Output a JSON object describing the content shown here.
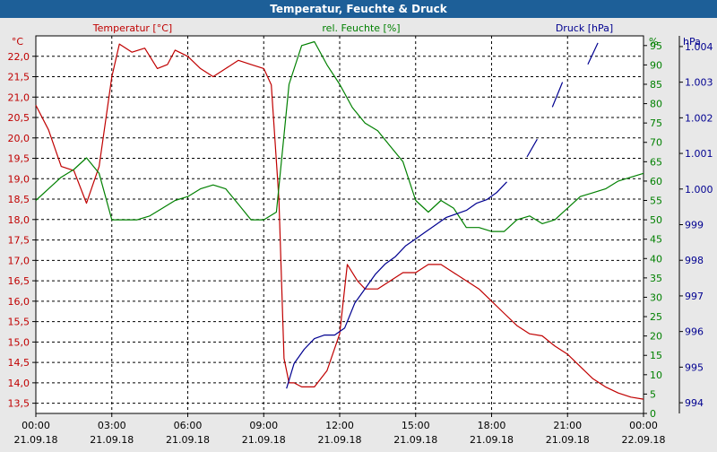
{
  "window": {
    "title": "Temperatur, Feuchte & Druck"
  },
  "chart_data": {
    "type": "line",
    "title": "",
    "xlabel": "",
    "x_ticks": [
      {
        "time": "00:00",
        "date": "21.09.18"
      },
      {
        "time": "03:00",
        "date": "21.09.18"
      },
      {
        "time": "06:00",
        "date": "21.09.18"
      },
      {
        "time": "09:00",
        "date": "21.09.18"
      },
      {
        "time": "12:00",
        "date": "21.09.18"
      },
      {
        "time": "15:00",
        "date": "21.09.18"
      },
      {
        "time": "18:00",
        "date": "21.09.18"
      },
      {
        "time": "21:00",
        "date": "21.09.18"
      },
      {
        "time": "00:00",
        "date": "22.09.18"
      }
    ],
    "xlim_hours": [
      0,
      24
    ],
    "grid": true,
    "axes": {
      "temperature": {
        "label": "Temperatur [°C]",
        "unit": "°C",
        "color": "#c00000",
        "side": "left",
        "ylim": [
          13.25,
          22.5
        ],
        "ticks": [
          "13,5",
          "14,0",
          "14,5",
          "15,0",
          "15,5",
          "16,0",
          "16,5",
          "17,0",
          "17,5",
          "18,0",
          "18,5",
          "19,0",
          "19,5",
          "20,0",
          "20,5",
          "21,0",
          "21,5",
          "22,0"
        ]
      },
      "humidity": {
        "label": "rel. Feuchte [%]",
        "unit": "%",
        "color": "#008000",
        "side": "right",
        "ylim": [
          0,
          97.5
        ],
        "ticks": [
          "0",
          "5",
          "10",
          "15",
          "20",
          "25",
          "30",
          "35",
          "40",
          "45",
          "50",
          "55",
          "60",
          "65",
          "70",
          "75",
          "80",
          "85",
          "90",
          "95"
        ]
      },
      "pressure": {
        "label": "Druck [hPa]",
        "unit": "hPa",
        "color": "#000090",
        "side": "right",
        "ylim": [
          993.7,
          1004.3
        ],
        "ticks": [
          "994",
          "995",
          "996",
          "997",
          "998",
          "999",
          "1.000",
          "1.001",
          "1.002",
          "1.003",
          "1.004"
        ]
      }
    },
    "series": [
      {
        "name": "Temperatur [°C]",
        "axis": "temperature",
        "color": "#c00000",
        "x": [
          0,
          0.5,
          1,
          1.5,
          2,
          2.5,
          3,
          3.3,
          3.8,
          4.3,
          4.8,
          5.2,
          5.5,
          6,
          6.5,
          7,
          7.5,
          8,
          8.5,
          9,
          9.3,
          9.6,
          9.8,
          10,
          10.2,
          10.5,
          11,
          11.5,
          12,
          12.3,
          12.7,
          13,
          13.5,
          14,
          14.5,
          15,
          15.5,
          16,
          16.5,
          17,
          17.5,
          18,
          18.5,
          19,
          19.5,
          20,
          20.5,
          21,
          21.5,
          22,
          22.5,
          23,
          23.5,
          24
        ],
        "y": [
          20.8,
          20.2,
          19.3,
          19.2,
          18.4,
          19.3,
          21.5,
          22.3,
          22.1,
          22.2,
          21.7,
          21.8,
          22.15,
          22.0,
          21.7,
          21.5,
          21.7,
          21.9,
          21.8,
          21.7,
          21.3,
          18.5,
          14.6,
          14.0,
          14.0,
          13.9,
          13.9,
          14.3,
          15.2,
          16.9,
          16.5,
          16.3,
          16.3,
          16.5,
          16.7,
          16.7,
          16.9,
          16.9,
          16.7,
          16.5,
          16.3,
          16.0,
          15.7,
          15.4,
          15.2,
          15.15,
          14.9,
          14.7,
          14.4,
          14.1,
          13.9,
          13.75,
          13.65,
          13.6
        ]
      },
      {
        "name": "rel. Feuchte [%]",
        "axis": "humidity",
        "color": "#008000",
        "x": [
          0,
          0.5,
          1,
          1.5,
          2,
          2.5,
          3,
          3.5,
          4,
          4.5,
          5,
          5.5,
          6,
          6.5,
          7,
          7.5,
          8,
          8.5,
          9,
          9.5,
          10,
          10.5,
          11,
          11.5,
          12,
          12.5,
          13,
          13.5,
          14,
          14.5,
          15,
          15.5,
          16,
          16.5,
          17,
          17.5,
          18,
          18.5,
          19,
          19.5,
          20,
          20.5,
          21,
          21.5,
          22,
          22.5,
          23,
          23.5,
          24
        ],
        "y": [
          55,
          58,
          61,
          63,
          66,
          62,
          50,
          50,
          50,
          51,
          53,
          55,
          56,
          58,
          59,
          58,
          54,
          50,
          50,
          52,
          85,
          95,
          96,
          90,
          85,
          79,
          75,
          73,
          69,
          65,
          55,
          52,
          55,
          53,
          48,
          48,
          47,
          47,
          50,
          51,
          49,
          50,
          53,
          56,
          57,
          58,
          60,
          61,
          62
        ]
      },
      {
        "name": "Druck [hPa]",
        "axis": "pressure",
        "color": "#000090",
        "x": [
          9.9,
          10.2,
          10.6,
          11.0,
          11.4,
          11.8,
          12.2,
          12.6,
          13.0,
          13.4,
          13.8,
          14.2,
          14.6,
          15.0,
          15.4,
          15.8,
          16.2,
          16.6,
          17.0,
          17.4,
          17.8,
          18.2,
          18.6,
          null,
          19.4,
          19.8,
          null,
          20.4,
          20.8,
          null,
          21.8,
          22.2,
          null,
          22.8
        ],
        "y": [
          994.4,
          995.1,
          995.5,
          995.8,
          995.9,
          995.9,
          996.1,
          996.8,
          997.2,
          997.6,
          997.9,
          998.1,
          998.4,
          998.6,
          998.8,
          999.0,
          999.2,
          999.3,
          999.4,
          999.6,
          999.7,
          999.9,
          1000.2,
          null,
          1000.9,
          1001.4,
          null,
          1002.3,
          1003.0,
          null,
          1003.5,
          1004.1,
          null,
          1004.2
        ]
      }
    ]
  }
}
